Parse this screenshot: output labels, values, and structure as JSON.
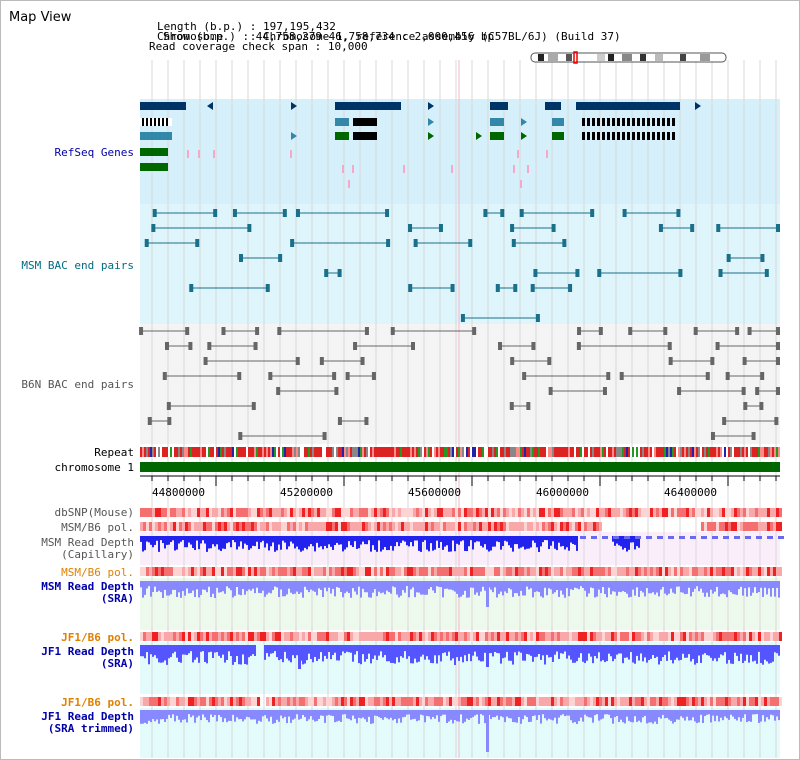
{
  "panel": {
    "title": "Map View"
  },
  "info": {
    "chromosome_label": "Chromosome",
    "chromosome_value": "Chromosome 1, reference assembly (C57BL/6J) (Build 37)",
    "length_label": "Length (b.p.)",
    "length_value": "197,195,432",
    "show_label": "Show (b.p.)",
    "show_value": "44,758,279-46,758,734 : 2,000,456 bp",
    "coverage_label": "Read coverage check span",
    "coverage_value": "10,000"
  },
  "tracks": {
    "refseq": "RefSeq Genes",
    "msm_bac": "MSM BAC end pairs",
    "b6n_bac": "B6N BAC end pairs",
    "repeat": "Repeat",
    "chromosome": "chromosome 1",
    "dbsnp": "dbSNP(Mouse)",
    "msm_pol": "MSM/B6 pol.",
    "msm_depth_cap_1": "MSM Read Depth",
    "msm_depth_cap_2": "(Capillary)",
    "msm_pol_2": "MSM/B6 pol.",
    "msm_depth_sra_1": "MSM Read Depth",
    "msm_depth_sra_2": "(SRA)",
    "jf1_pol": "JF1/B6 pol.",
    "jf1_depth_1": "JF1 Read Depth",
    "jf1_depth_2": "(SRA)",
    "jf1_pol_2": "JF1/B6 pol.",
    "jf1_trim_1": "JF1 Read Depth",
    "jf1_trim_2": "(SRA trimmed)"
  },
  "axis": {
    "ticks": [
      "44800000",
      "45200000",
      "45600000",
      "46000000",
      "46400000"
    ]
  },
  "colors": {
    "refseq_bg": "#d6f0fb",
    "msm_bg": "#ddf5fb",
    "b6n_bg": "#f4f4f4",
    "gene_dark": "#003366",
    "gene_mid": "#3388aa",
    "gene_green": "#006600",
    "chromosome": "#006600",
    "msm_feature": "#1a6f8a",
    "b6n_feature": "#666666",
    "depth_blue": "#3333ff",
    "pol_red": "#ff4444",
    "label_blue": "#0000aa",
    "label_teal": "#006a80",
    "label_orange": "#e08000",
    "label_gray": "#555555"
  }
}
